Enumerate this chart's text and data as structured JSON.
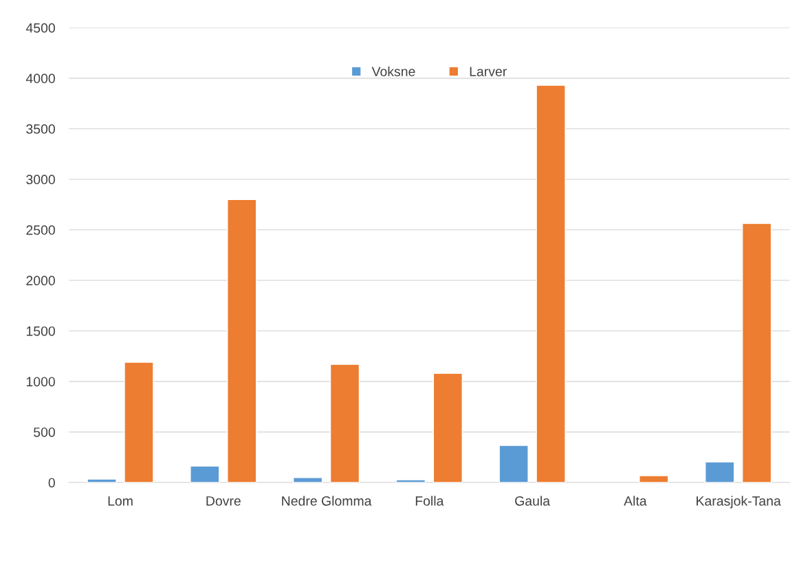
{
  "chart_data": {
    "type": "bar",
    "categories": [
      "Lom",
      "Dovre",
      "Nedre Glomma",
      "Folla",
      "Gaula",
      "Alta",
      "Karasjok-Tana"
    ],
    "series": [
      {
        "name": "Voksne",
        "color": "#5b9bd5",
        "values": [
          34,
          163,
          48,
          27,
          367,
          null,
          204
        ]
      },
      {
        "name": "Larver",
        "color": "#ed7d31",
        "values": [
          1190,
          2800,
          1170,
          1080,
          3930,
          68,
          2563
        ]
      }
    ],
    "ylim": [
      0,
      4500
    ],
    "yticks": [
      0,
      500,
      1000,
      1500,
      2000,
      2500,
      3000,
      3500,
      4000,
      4500
    ],
    "grid": "y",
    "legend": "top"
  }
}
